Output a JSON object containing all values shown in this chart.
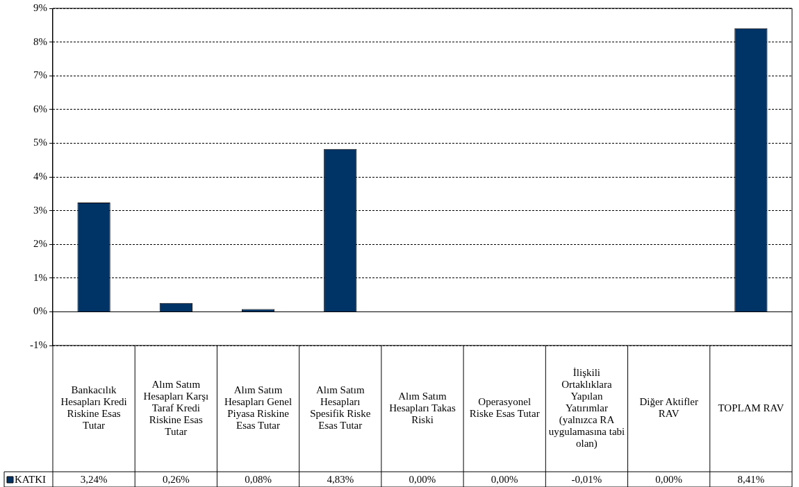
{
  "chart_data": {
    "type": "bar",
    "categories": [
      "Bankacılık Hesapları Kredi Riskine Esas Tutar",
      "Alım Satım Hesapları Karşı Taraf Kredi Riskine Esas Tutar",
      "Alım Satım Hesapları Genel Piyasa Riskine Esas Tutar",
      "Alım Satım Hesapları Spesifik Riske Esas Tutar",
      "Alım Satım Hesapları Takas Riski",
      "Operasyonel Riske Esas Tutar",
      "İlişkili Ortaklıklara Yapılan Yatırımlar (yalnızca RA uygulamasına tabi olan)",
      "Diğer Aktifler RAV",
      "TOPLAM RAV"
    ],
    "series": [
      {
        "name": "KATKI",
        "color": "#003366",
        "values": [
          3.24,
          0.26,
          0.08,
          4.83,
          0.0,
          0.0,
          -0.01,
          0.0,
          8.41
        ],
        "value_labels": [
          "3,24%",
          "0,26%",
          "0,08%",
          "4,83%",
          "0,00%",
          "0,00%",
          "-0,01%",
          "0,00%",
          "8,41%"
        ]
      }
    ],
    "ylim": [
      -1,
      9
    ],
    "yticks": [
      {
        "value": -1,
        "label": "-1%"
      },
      {
        "value": 0,
        "label": "0%"
      },
      {
        "value": 1,
        "label": "1%"
      },
      {
        "value": 2,
        "label": "2%"
      },
      {
        "value": 3,
        "label": "3%"
      },
      {
        "value": 4,
        "label": "4%"
      },
      {
        "value": 5,
        "label": "5%"
      },
      {
        "value": 6,
        "label": "6%"
      },
      {
        "value": 7,
        "label": "7%"
      },
      {
        "value": 8,
        "label": "8%"
      },
      {
        "value": 9,
        "label": "9%"
      }
    ],
    "grid": "y",
    "legend": "bottom left"
  }
}
